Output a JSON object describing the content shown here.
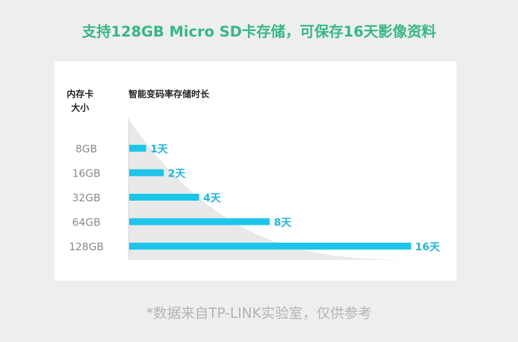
{
  "headline": "支持128GB Micro SD卡存储，可保存16天影像资料",
  "footnote": "*数据来自TP-LINK实验室，仅供参考",
  "colors": {
    "headline": "#37b886",
    "bar": "#1dc5ea",
    "value_label": "#1fb6e0",
    "curve_fill": "#e9e9e9",
    "background": "#eeeeee"
  },
  "chart_data": {
    "type": "bar",
    "orientation": "horizontal",
    "category_header": "内存卡\n大小",
    "value_header": "智能变码率存储时长",
    "categories": [
      "8GB",
      "16GB",
      "32GB",
      "64GB",
      "128GB"
    ],
    "values": [
      1,
      2,
      4,
      8,
      16
    ],
    "value_labels": [
      "1天",
      "2天",
      "4天",
      "8天",
      "16天"
    ],
    "xlim": [
      0,
      16
    ]
  }
}
